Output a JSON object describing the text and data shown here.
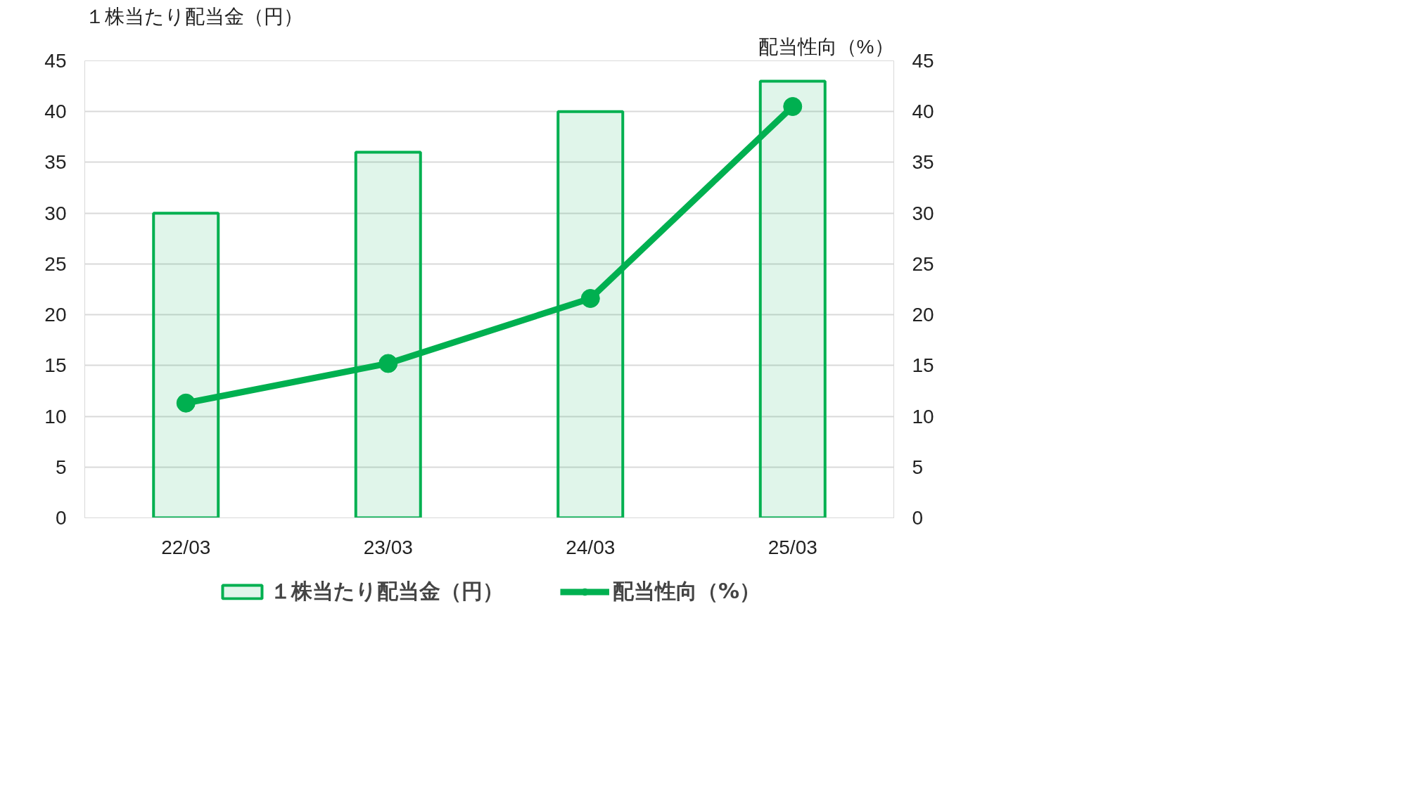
{
  "chart_data": {
    "type": "bar",
    "categories": [
      "22/03",
      "23/03",
      "24/03",
      "25/03"
    ],
    "ylabel": "１株当たり配当金（円）",
    "y2label": "配当性向（%）",
    "ylim": [
      0,
      45
    ],
    "yticks": [
      0,
      5,
      10,
      15,
      20,
      25,
      30,
      35,
      40,
      45
    ],
    "y2lim": [
      0,
      45
    ],
    "y2ticks": [
      0,
      5,
      10,
      15,
      20,
      25,
      30,
      35,
      40,
      45
    ],
    "grid": "y",
    "legend": "bottom",
    "marker": "circle",
    "line_style": "solid",
    "series": [
      {
        "name": "１株当たり配当金（円）",
        "color": "#00b050",
        "values": [
          30,
          36,
          40,
          43
        ]
      },
      {
        "name": "配当性向（%）",
        "type": "line",
        "axis": "y2",
        "color": "#00b050",
        "values": [
          11.3,
          15.2,
          21.6,
          40.5
        ]
      }
    ]
  }
}
